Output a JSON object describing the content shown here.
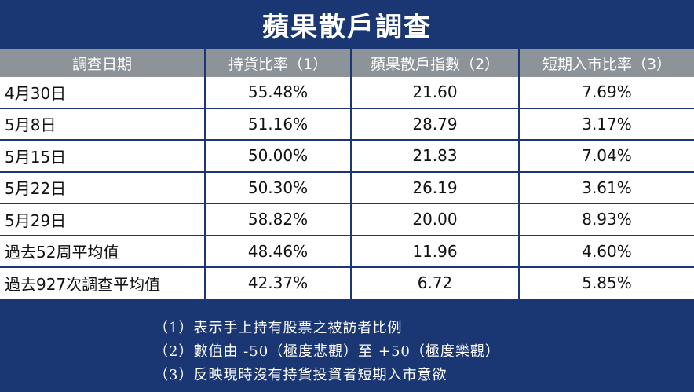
{
  "title": "蘋果散戶調查",
  "headers": [
    "調查日期",
    "持貨比率（1）",
    "蘋果散戶指數（2）",
    "短期入市比率（3）"
  ],
  "rows": [
    {
      "date": "4月30日",
      "holding_ratio": "55.48%",
      "index": "21.60",
      "short_term_ratio": "7.69%"
    },
    {
      "date": "5月8日",
      "holding_ratio": "51.16%",
      "index": "28.79",
      "short_term_ratio": "3.17%"
    },
    {
      "date": "5月15日",
      "holding_ratio": "50.00%",
      "index": "21.83",
      "short_term_ratio": "7.04%"
    },
    {
      "date": "5月22日",
      "holding_ratio": "50.30%",
      "index": "26.19",
      "short_term_ratio": "3.61%"
    },
    {
      "date": "5月29日",
      "holding_ratio": "58.82%",
      "index": "20.00",
      "short_term_ratio": "8.93%"
    },
    {
      "date": "過去52周平均值",
      "holding_ratio": "48.46%",
      "index": "11.96",
      "short_term_ratio": "4.60%"
    },
    {
      "date": "過去927次調查平均值",
      "holding_ratio": "42.37%",
      "index": "6.72",
      "short_term_ratio": "5.85%"
    }
  ],
  "notes": [
    "（1）表示手上持有股票之被訪者比例",
    "（2）數值由 -50（極度悲觀）至 +50（極度樂觀）",
    "（3）反映現時沒有持貨投資者短期入市意欲"
  ],
  "colors": {
    "navy": "#1a3673",
    "header_gray": "#8d9499",
    "cell_bg": "#ffffff"
  }
}
